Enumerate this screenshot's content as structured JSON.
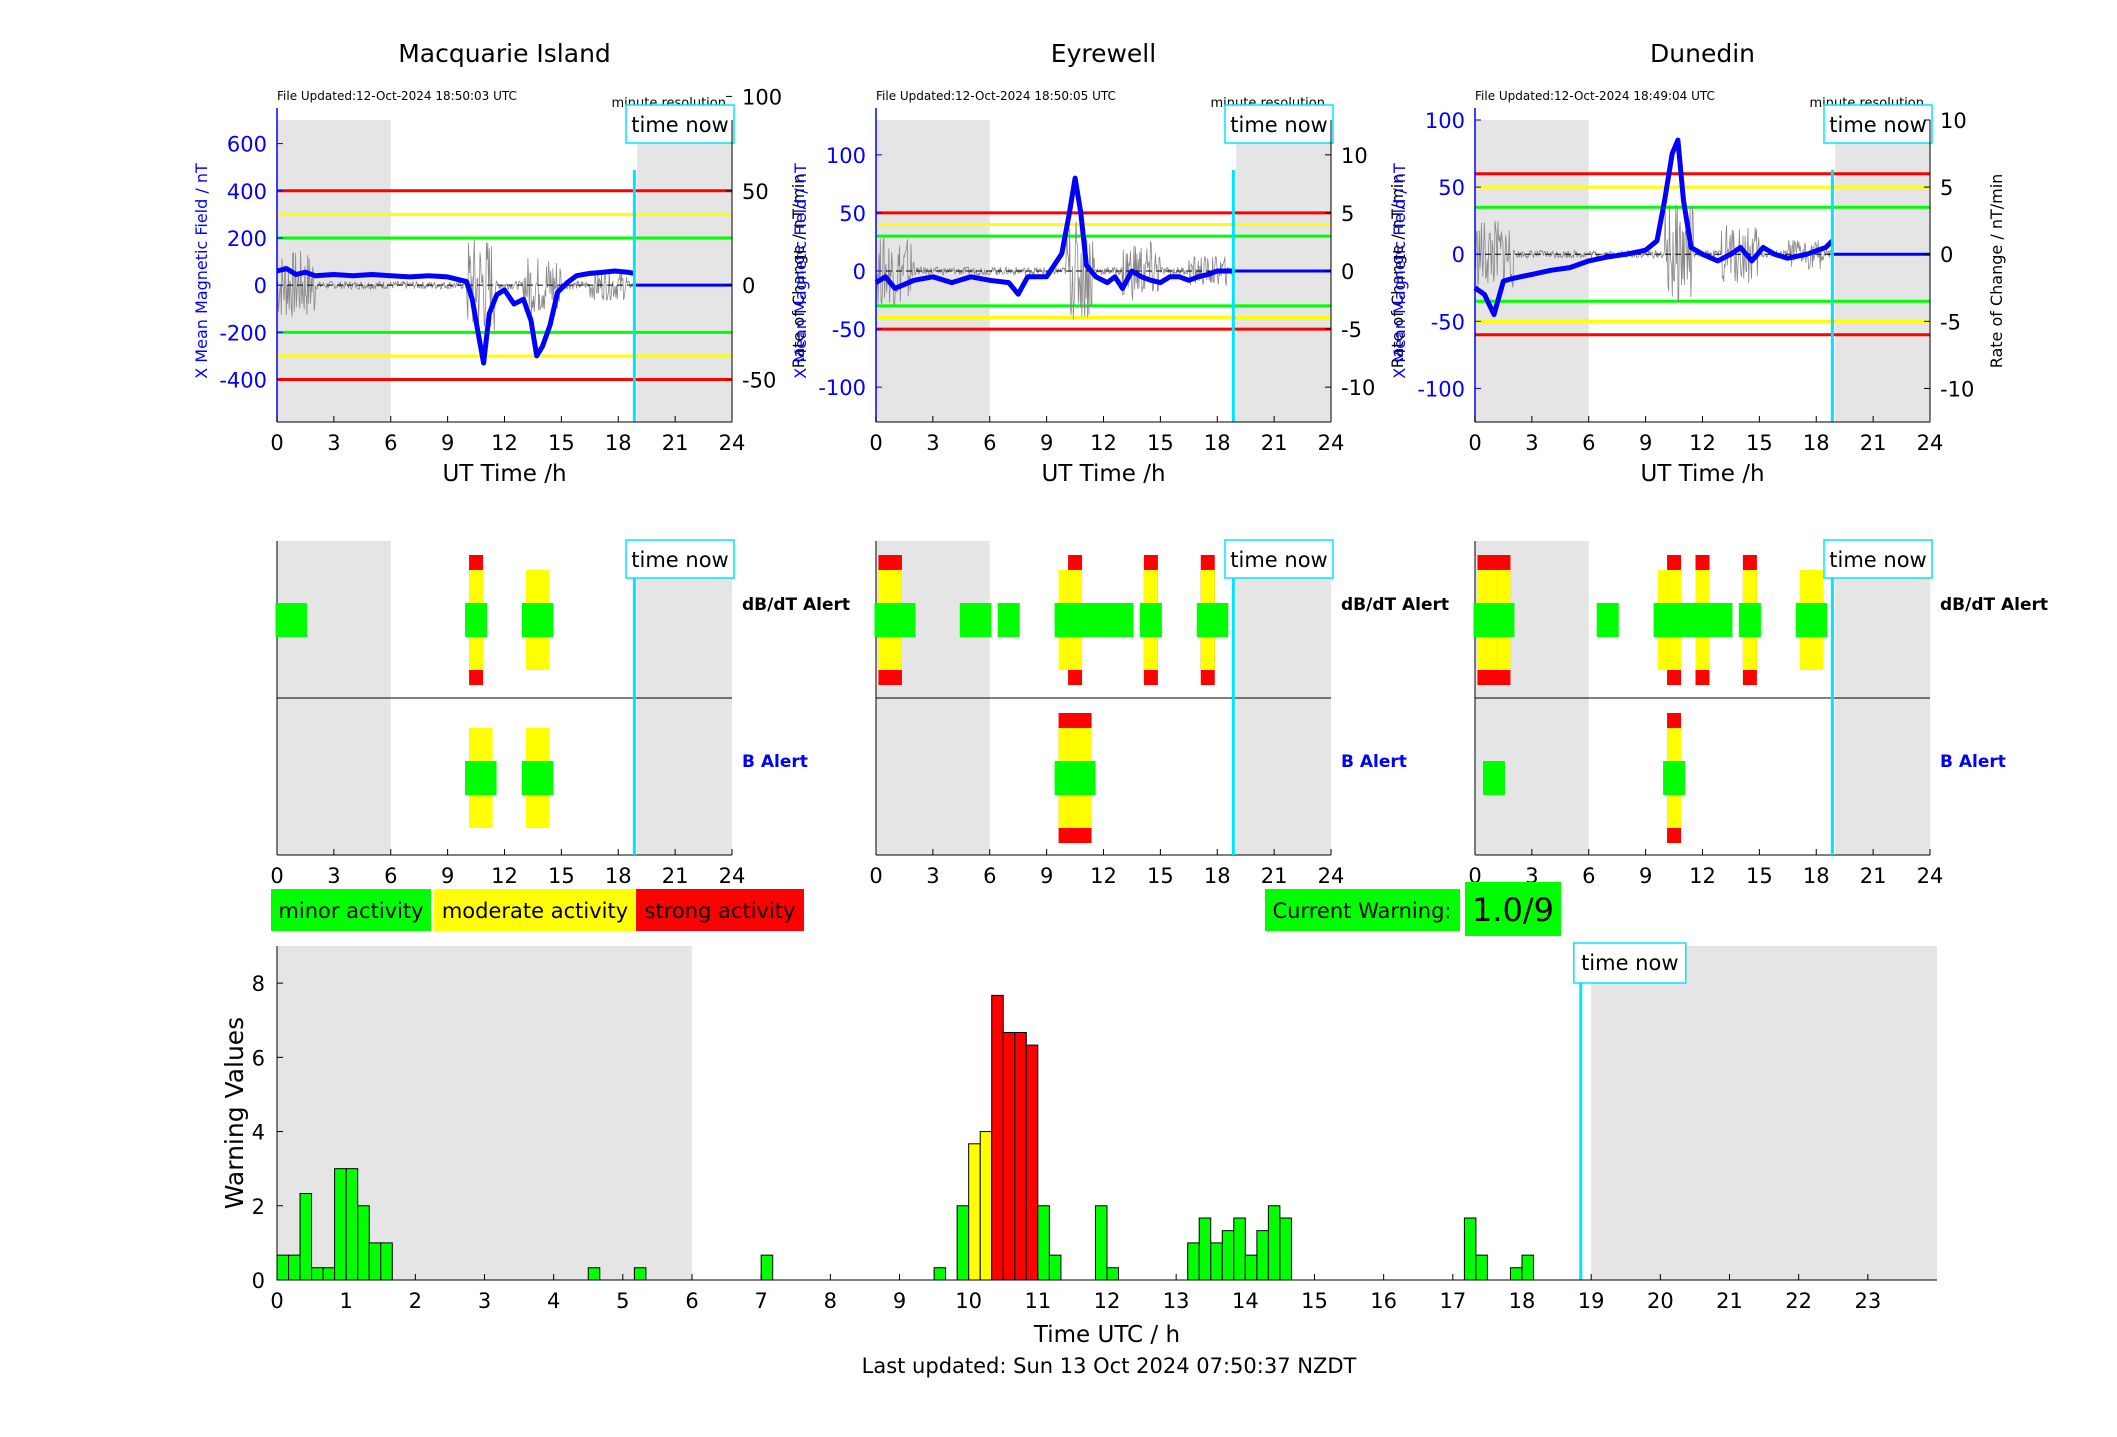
{
  "stations": [
    {
      "name": "Macquarie Island",
      "file_updated": "File Updated:12-Oct-2024 18:50:03 UTC",
      "resolution": "minute resolution",
      "time_now_label": "time now",
      "time_now": 18.85,
      "left_ylabel": "X Mean Magnetic Field / nT",
      "right_ylabel": "Rate of Change / nT/min",
      "left_ticks": [
        -400,
        -200,
        0,
        200,
        400,
        600
      ],
      "right_ticks": [
        -50,
        0,
        50,
        100
      ],
      "left_range": [
        -580,
        700
      ],
      "right_range": [
        -72.5,
        87.5
      ],
      "thresholds": {
        "red": [
          400,
          -400
        ],
        "yellow": [
          300,
          -300
        ],
        "green": [
          200,
          -200
        ]
      },
      "xlabel": "UT Time /h",
      "xticks": [
        0,
        3,
        6,
        9,
        12,
        15,
        18,
        21,
        24
      ],
      "field_trace": [
        [
          0,
          60
        ],
        [
          0.5,
          70
        ],
        [
          1,
          45
        ],
        [
          1.5,
          55
        ],
        [
          2,
          40
        ],
        [
          3,
          45
        ],
        [
          4,
          40
        ],
        [
          5,
          45
        ],
        [
          6,
          40
        ],
        [
          7,
          35
        ],
        [
          8,
          40
        ],
        [
          9,
          35
        ],
        [
          10,
          15
        ],
        [
          10.3,
          -60
        ],
        [
          10.6,
          -200
        ],
        [
          10.9,
          -330
        ],
        [
          11.2,
          -120
        ],
        [
          11.6,
          -40
        ],
        [
          12,
          -20
        ],
        [
          12.5,
          -80
        ],
        [
          13,
          -60
        ],
        [
          13.4,
          -150
        ],
        [
          13.7,
          -300
        ],
        [
          14,
          -260
        ],
        [
          14.4,
          -170
        ],
        [
          14.8,
          -30
        ],
        [
          15.3,
          10
        ],
        [
          15.8,
          40
        ],
        [
          16.5,
          50
        ],
        [
          17.2,
          55
        ],
        [
          17.8,
          60
        ],
        [
          18.5,
          55
        ],
        [
          18.85,
          50
        ]
      ],
      "dbdt_alert": [
        [
          0.5,
          "g"
        ],
        [
          1,
          "g"
        ],
        [
          10.5,
          "r"
        ],
        [
          13.5,
          "y"
        ],
        [
          14,
          "y"
        ]
      ],
      "b_alert": [
        [
          10.5,
          "y"
        ],
        [
          11,
          "y"
        ],
        [
          13.5,
          "y"
        ],
        [
          14,
          "y"
        ]
      ]
    },
    {
      "name": "Eyrewell",
      "file_updated": "File Updated:12-Oct-2024 18:50:05 UTC",
      "resolution": "minute resolution",
      "time_now_label": "time now",
      "time_now": 18.85,
      "left_ylabel": "X Mean Magnetic Field / nT",
      "right_ylabel": "Rate of Change / nT/min",
      "left_ticks": [
        -100,
        -50,
        0,
        50,
        100
      ],
      "right_ticks": [
        -10,
        -5,
        0,
        5,
        10
      ],
      "left_range": [
        -130,
        130
      ],
      "right_range": [
        -13,
        13
      ],
      "thresholds": {
        "red": [
          50,
          -50
        ],
        "yellow": [
          40,
          -40
        ],
        "green": [
          30,
          -30
        ]
      },
      "xlabel": "UT Time /h",
      "xticks": [
        0,
        3,
        6,
        9,
        12,
        15,
        18,
        21,
        24
      ],
      "field_trace": [
        [
          0,
          -10
        ],
        [
          0.5,
          -5
        ],
        [
          1,
          -15
        ],
        [
          2,
          -8
        ],
        [
          3,
          -5
        ],
        [
          4,
          -10
        ],
        [
          5,
          -5
        ],
        [
          6,
          -8
        ],
        [
          7,
          -10
        ],
        [
          7.5,
          -20
        ],
        [
          8,
          -5
        ],
        [
          9,
          -5
        ],
        [
          9.8,
          15
        ],
        [
          10.2,
          50
        ],
        [
          10.5,
          80
        ],
        [
          10.8,
          50
        ],
        [
          11.1,
          5
        ],
        [
          11.6,
          -5
        ],
        [
          12.2,
          -10
        ],
        [
          12.6,
          -5
        ],
        [
          13,
          -15
        ],
        [
          13.5,
          0
        ],
        [
          14,
          -5
        ],
        [
          14.5,
          -8
        ],
        [
          15,
          -10
        ],
        [
          15.5,
          -5
        ],
        [
          16,
          -5
        ],
        [
          16.5,
          -8
        ],
        [
          17,
          -5
        ],
        [
          17.5,
          -3
        ],
        [
          18,
          0
        ],
        [
          18.85,
          0
        ]
      ],
      "dbdt_alert": [
        [
          0.5,
          "r"
        ],
        [
          1,
          "r"
        ],
        [
          1.5,
          "g"
        ],
        [
          5,
          "g"
        ],
        [
          5.5,
          "g"
        ],
        [
          7,
          "g"
        ],
        [
          10,
          "y"
        ],
        [
          10.5,
          "r"
        ],
        [
          11,
          "g"
        ],
        [
          12,
          "g"
        ],
        [
          13,
          "g"
        ],
        [
          14.5,
          "r"
        ],
        [
          17.5,
          "r"
        ],
        [
          18,
          "g"
        ]
      ],
      "b_alert": [
        [
          10,
          "r"
        ],
        [
          10.5,
          "r"
        ],
        [
          11,
          "r"
        ]
      ]
    },
    {
      "name": "Dunedin",
      "file_updated": "File Updated:12-Oct-2024 18:49:04 UTC",
      "resolution": "minute resolution",
      "time_now_label": "time now",
      "time_now": 18.85,
      "left_ylabel": "X Mean Magnetic Field / nT",
      "right_ylabel": "Rate of Change / nT/min",
      "left_ticks": [
        -100,
        -50,
        0,
        50,
        100
      ],
      "right_ticks": [
        -10,
        -5,
        0,
        5,
        10
      ],
      "left_range": [
        -125,
        100
      ],
      "right_range": [
        -12.5,
        10
      ],
      "thresholds": {
        "red": [
          60,
          -60
        ],
        "yellow": [
          50,
          -50
        ],
        "green": [
          35,
          -35
        ]
      },
      "xlabel": "UT Time /h",
      "xticks": [
        0,
        3,
        6,
        9,
        12,
        15,
        18,
        21,
        24
      ],
      "field_trace": [
        [
          0,
          -25
        ],
        [
          0.5,
          -30
        ],
        [
          1,
          -45
        ],
        [
          1.5,
          -20
        ],
        [
          2,
          -18
        ],
        [
          3,
          -15
        ],
        [
          4,
          -12
        ],
        [
          5,
          -10
        ],
        [
          6,
          -5
        ],
        [
          7,
          -2
        ],
        [
          8,
          0
        ],
        [
          9,
          3
        ],
        [
          9.6,
          10
        ],
        [
          10,
          40
        ],
        [
          10.4,
          75
        ],
        [
          10.7,
          85
        ],
        [
          11,
          40
        ],
        [
          11.4,
          5
        ],
        [
          12,
          0
        ],
        [
          12.8,
          -5
        ],
        [
          13.5,
          0
        ],
        [
          14,
          5
        ],
        [
          14.6,
          -5
        ],
        [
          15.2,
          5
        ],
        [
          15.8,
          0
        ],
        [
          16.5,
          -3
        ],
        [
          17.5,
          0
        ],
        [
          18.5,
          5
        ],
        [
          18.85,
          10
        ]
      ],
      "dbdt_alert": [
        [
          0.5,
          "r"
        ],
        [
          1,
          "r"
        ],
        [
          1.5,
          "r"
        ],
        [
          7,
          "g"
        ],
        [
          10,
          "y"
        ],
        [
          10.5,
          "r"
        ],
        [
          11,
          "g"
        ],
        [
          12,
          "r"
        ],
        [
          13,
          "g"
        ],
        [
          14.5,
          "r"
        ],
        [
          17.5,
          "y"
        ],
        [
          18,
          "y"
        ]
      ],
      "b_alert": [
        [
          1,
          "g"
        ],
        [
          10.5,
          "r"
        ]
      ]
    }
  ],
  "alert_labels": {
    "dbdt": "dB/dT Alert",
    "b": "B Alert"
  },
  "legend": {
    "minor": "minor activity",
    "moderate": "moderate activity",
    "strong": "strong activity"
  },
  "current_warning": {
    "label": "Current Warning:",
    "value": "1.0/9"
  },
  "colors": {
    "green": "#00ff00",
    "yellow": "#ffff00",
    "red": "#ff0000",
    "cyan": "#00e5ff",
    "blue": "#0000ff",
    "night": "#e5e5e5"
  },
  "chart_data": {
    "type": "bar",
    "ylabel": "Warning Values",
    "xlabel": "Time UTC / h",
    "ylim": [
      0,
      9
    ],
    "xlim": [
      0,
      24
    ],
    "xticks": [
      0,
      1,
      2,
      3,
      4,
      5,
      6,
      7,
      8,
      9,
      10,
      11,
      12,
      13,
      14,
      15,
      16,
      17,
      18,
      19,
      20,
      21,
      22,
      23
    ],
    "yticks": [
      0,
      2,
      4,
      6,
      8
    ],
    "time_now": 18.85,
    "time_now_label": "time now",
    "night_periods": [
      [
        0,
        6
      ],
      [
        19,
        24
      ]
    ],
    "bar_width_h": 0.1667,
    "bars": [
      {
        "start": 0.0,
        "value": 0.67,
        "level": "minor"
      },
      {
        "start": 0.167,
        "value": 0.67,
        "level": "minor"
      },
      {
        "start": 0.333,
        "value": 2.33,
        "level": "minor"
      },
      {
        "start": 0.5,
        "value": 0.33,
        "level": "minor"
      },
      {
        "start": 0.667,
        "value": 0.33,
        "level": "minor"
      },
      {
        "start": 0.833,
        "value": 3.0,
        "level": "minor"
      },
      {
        "start": 1.0,
        "value": 3.0,
        "level": "minor"
      },
      {
        "start": 1.167,
        "value": 2.0,
        "level": "minor"
      },
      {
        "start": 1.333,
        "value": 1.0,
        "level": "minor"
      },
      {
        "start": 1.5,
        "value": 1.0,
        "level": "minor"
      },
      {
        "start": 4.5,
        "value": 0.33,
        "level": "minor"
      },
      {
        "start": 5.167,
        "value": 0.33,
        "level": "minor"
      },
      {
        "start": 7.0,
        "value": 0.67,
        "level": "minor"
      },
      {
        "start": 9.5,
        "value": 0.33,
        "level": "minor"
      },
      {
        "start": 9.833,
        "value": 2.0,
        "level": "minor"
      },
      {
        "start": 10.0,
        "value": 3.67,
        "level": "moderate"
      },
      {
        "start": 10.167,
        "value": 4.0,
        "level": "moderate"
      },
      {
        "start": 10.333,
        "value": 7.67,
        "level": "strong"
      },
      {
        "start": 10.5,
        "value": 6.67,
        "level": "strong"
      },
      {
        "start": 10.667,
        "value": 6.67,
        "level": "strong"
      },
      {
        "start": 10.833,
        "value": 6.33,
        "level": "strong"
      },
      {
        "start": 11.0,
        "value": 2.0,
        "level": "minor"
      },
      {
        "start": 11.167,
        "value": 0.67,
        "level": "minor"
      },
      {
        "start": 11.833,
        "value": 2.0,
        "level": "minor"
      },
      {
        "start": 12.0,
        "value": 0.33,
        "level": "minor"
      },
      {
        "start": 13.167,
        "value": 1.0,
        "level": "minor"
      },
      {
        "start": 13.333,
        "value": 1.67,
        "level": "minor"
      },
      {
        "start": 13.5,
        "value": 1.0,
        "level": "minor"
      },
      {
        "start": 13.667,
        "value": 1.33,
        "level": "minor"
      },
      {
        "start": 13.833,
        "value": 1.67,
        "level": "minor"
      },
      {
        "start": 14.0,
        "value": 0.67,
        "level": "minor"
      },
      {
        "start": 14.167,
        "value": 1.33,
        "level": "minor"
      },
      {
        "start": 14.333,
        "value": 2.0,
        "level": "minor"
      },
      {
        "start": 14.5,
        "value": 1.67,
        "level": "minor"
      },
      {
        "start": 17.167,
        "value": 1.67,
        "level": "minor"
      },
      {
        "start": 17.333,
        "value": 0.67,
        "level": "minor"
      },
      {
        "start": 17.833,
        "value": 0.33,
        "level": "minor"
      },
      {
        "start": 18.0,
        "value": 0.67,
        "level": "minor"
      }
    ]
  },
  "footer": "Last updated: Sun 13 Oct 2024 07:50:37 NZDT"
}
